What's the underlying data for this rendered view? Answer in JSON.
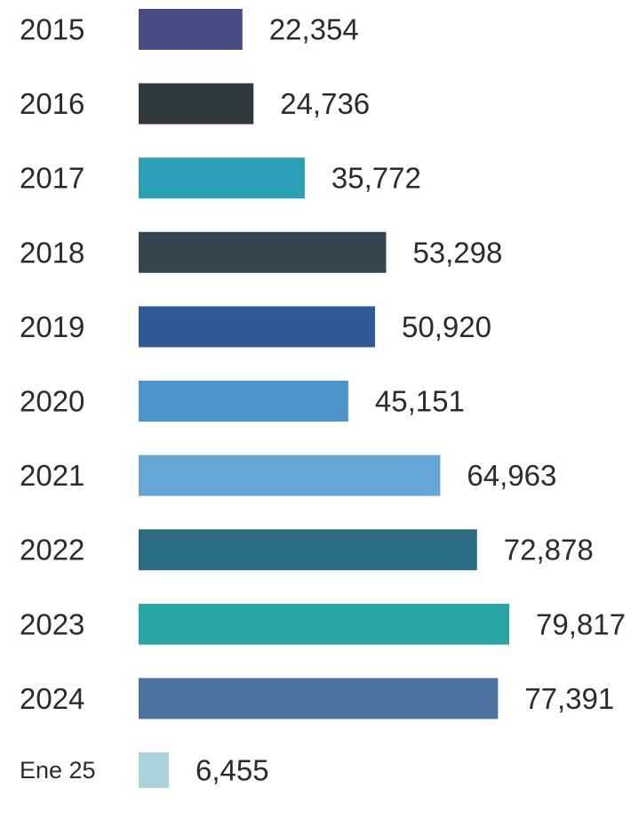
{
  "chart_data": {
    "type": "bar",
    "orientation": "horizontal",
    "categories": [
      "2015",
      "2016",
      "2017",
      "2018",
      "2019",
      "2020",
      "2021",
      "2022",
      "2023",
      "2024",
      "Ene 25"
    ],
    "values": [
      22354,
      24736,
      35772,
      53298,
      50920,
      45151,
      64963,
      72878,
      79817,
      77391,
      6455
    ],
    "value_labels": [
      "22,354",
      "24,736",
      "35,772",
      "53,298",
      "50,920",
      "45,151",
      "64,963",
      "72,878",
      "79,817",
      "77,391",
      "6,455"
    ],
    "colors": [
      "#474d82",
      "#2f3a3f",
      "#2a9fb6",
      "#344550",
      "#2f5a98",
      "#4d94cc",
      "#64a6d6",
      "#2a6c84",
      "#2ba6a8",
      "#4b729e",
      "#a9d2dc"
    ],
    "title": "",
    "xlabel": "",
    "ylabel": "",
    "grid": false,
    "legend": "none"
  }
}
